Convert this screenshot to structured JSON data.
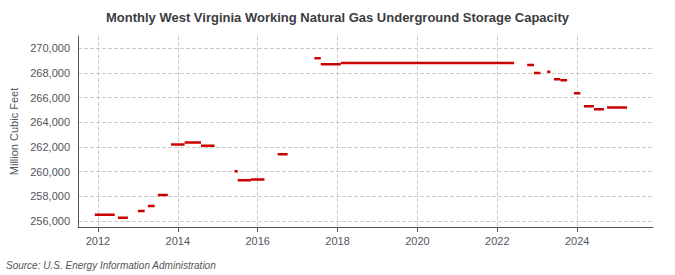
{
  "chart_data": {
    "type": "line",
    "title": "Monthly West Virginia Working Natural Gas Underground Storage Capacity",
    "ylabel": "Million Cubic Feet",
    "source": "Source: U.S. Energy Information Administration",
    "color": "#cc0000",
    "grid": true,
    "xlim": [
      2011.5,
      2025.9
    ],
    "xticks": [
      2012,
      2014,
      2016,
      2018,
      2020,
      2022,
      2024
    ],
    "ylim": [
      255500,
      271000
    ],
    "yticks": [
      {
        "value": 256000,
        "label": "256,000"
      },
      {
        "value": 258000,
        "label": "258,000"
      },
      {
        "value": 260000,
        "label": "260,000"
      },
      {
        "value": 262000,
        "label": "262,000"
      },
      {
        "value": 264000,
        "label": "264,000"
      },
      {
        "value": 266000,
        "label": "266,000"
      },
      {
        "value": 268000,
        "label": "268,000"
      },
      {
        "value": 270000,
        "label": "270,000"
      }
    ],
    "segments": [
      {
        "x_start": 2011.92,
        "x_end": 2012.42,
        "y": 256500
      },
      {
        "x_start": 2012.5,
        "x_end": 2012.75,
        "y": 256250
      },
      {
        "x_start": 2013.0,
        "x_end": 2013.17,
        "y": 256800
      },
      {
        "x_start": 2013.25,
        "x_end": 2013.42,
        "y": 257200
      },
      {
        "x_start": 2013.5,
        "x_end": 2013.75,
        "y": 258100
      },
      {
        "x_start": 2013.83,
        "x_end": 2014.17,
        "y": 262200
      },
      {
        "x_start": 2014.17,
        "x_end": 2014.58,
        "y": 262350
      },
      {
        "x_start": 2014.58,
        "x_end": 2014.92,
        "y": 262100
      },
      {
        "x_start": 2015.42,
        "x_end": 2015.5,
        "y": 260020
      },
      {
        "x_start": 2015.5,
        "x_end": 2015.83,
        "y": 259300
      },
      {
        "x_start": 2015.83,
        "x_end": 2016.17,
        "y": 259350
      },
      {
        "x_start": 2016.5,
        "x_end": 2016.75,
        "y": 261400
      },
      {
        "x_start": 2017.42,
        "x_end": 2017.58,
        "y": 269200
      },
      {
        "x_start": 2017.58,
        "x_end": 2017.83,
        "y": 268700
      },
      {
        "x_start": 2017.83,
        "x_end": 2018.08,
        "y": 268700
      },
      {
        "x_start": 2018.08,
        "x_end": 2022.42,
        "y": 268800
      },
      {
        "x_start": 2022.75,
        "x_end": 2022.92,
        "y": 268650
      },
      {
        "x_start": 2022.92,
        "x_end": 2023.08,
        "y": 268000
      },
      {
        "x_start": 2023.25,
        "x_end": 2023.33,
        "y": 268100
      },
      {
        "x_start": 2023.42,
        "x_end": 2023.58,
        "y": 267500
      },
      {
        "x_start": 2023.58,
        "x_end": 2023.75,
        "y": 267400
      },
      {
        "x_start": 2023.92,
        "x_end": 2024.08,
        "y": 266350
      },
      {
        "x_start": 2024.17,
        "x_end": 2024.42,
        "y": 265300
      },
      {
        "x_start": 2024.42,
        "x_end": 2024.67,
        "y": 265050
      },
      {
        "x_start": 2024.75,
        "x_end": 2025.25,
        "y": 265200
      }
    ]
  }
}
